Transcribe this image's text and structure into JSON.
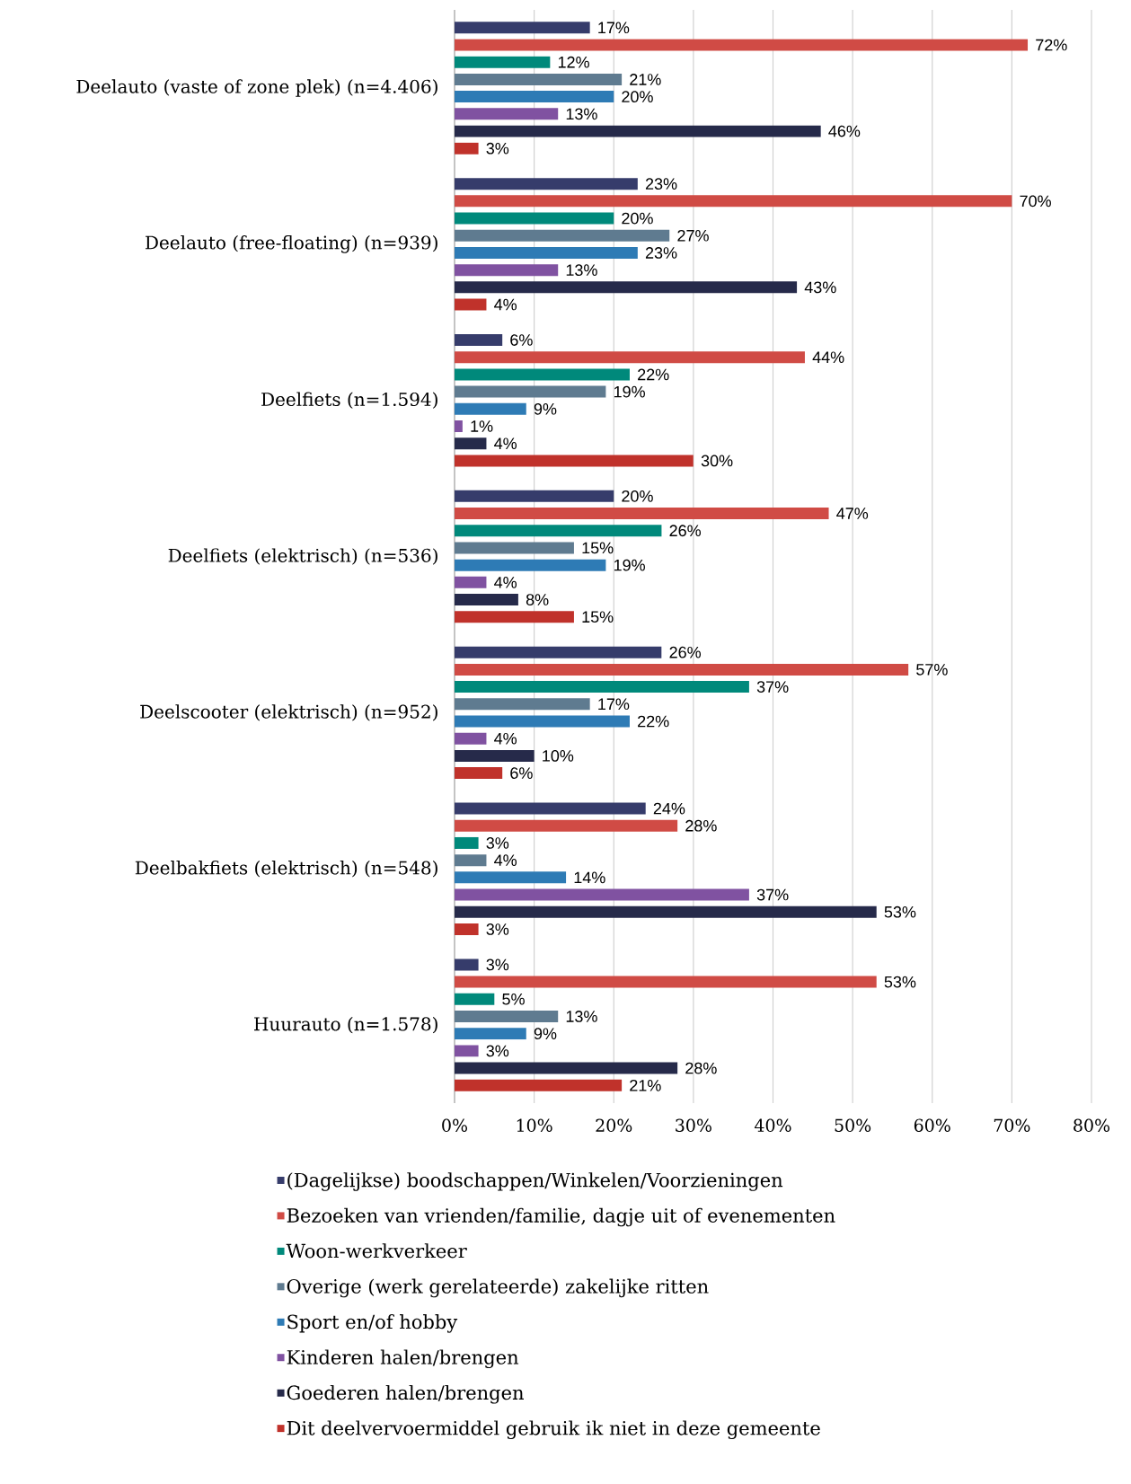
{
  "chart_data": {
    "type": "bar",
    "orientation": "horizontal",
    "categories": [
      "Deelauto (vaste of zone plek) (n=4.406)",
      "Deelauto (free-floating) (n=939)",
      "Deelfiets (n=1.594)",
      "Deelfiets (elektrisch) (n=536)",
      "Deelscooter (elektrisch) (n=952)",
      "Deelbakfiets (elektrisch) (n=548)",
      "Huurauto (n=1.578)"
    ],
    "xlim": [
      0,
      80
    ],
    "xticks": [
      {
        "value": 0,
        "label": "0%"
      },
      {
        "value": 10,
        "label": "10%"
      },
      {
        "value": 20,
        "label": "20%"
      },
      {
        "value": 30,
        "label": "30%"
      },
      {
        "value": 40,
        "label": "40%"
      },
      {
        "value": 50,
        "label": "50%"
      },
      {
        "value": 60,
        "label": "60%"
      },
      {
        "value": 70,
        "label": "70%"
      },
      {
        "value": 80,
        "label": "80%"
      }
    ],
    "grid": "x",
    "legend": "bottom",
    "series": [
      {
        "name": "(Dagelijkse) boodschappen/Winkelen/Voorzieningen",
        "color": "#363c6b",
        "values": [
          17,
          23,
          6,
          20,
          26,
          24,
          3
        ],
        "value_labels": [
          "17%",
          "23%",
          "6%",
          "20%",
          "26%",
          "24%",
          "3%"
        ]
      },
      {
        "name": "Bezoeken van vrienden/familie, dagje uit of evenementen",
        "color": "#d04b45",
        "values": [
          72,
          70,
          44,
          47,
          57,
          28,
          53
        ],
        "value_labels": [
          "72%",
          "70%",
          "44%",
          "47%",
          "57%",
          "28%",
          "53%"
        ]
      },
      {
        "name": "Woon-werkverkeer",
        "color": "#00897b",
        "values": [
          12,
          20,
          22,
          26,
          37,
          3,
          5
        ],
        "value_labels": [
          "12%",
          "20%",
          "22%",
          "26%",
          "37%",
          "3%",
          "5%"
        ]
      },
      {
        "name": "Overige (werk gerelateerde) zakelijke ritten",
        "color": "#5f7b90",
        "values": [
          21,
          27,
          19,
          15,
          17,
          4,
          13
        ],
        "value_labels": [
          "21%",
          "27%",
          "19%",
          "15%",
          "17%",
          "4%",
          "13%"
        ]
      },
      {
        "name": "Sport en/of hobby",
        "color": "#2e7bb5",
        "values": [
          20,
          23,
          9,
          19,
          22,
          14,
          9
        ],
        "value_labels": [
          "20%",
          "23%",
          "9%",
          "19%",
          "22%",
          "14%",
          "9%"
        ]
      },
      {
        "name": "Kinderen halen/brengen",
        "color": "#8052a1",
        "values": [
          13,
          13,
          1,
          4,
          4,
          37,
          3
        ],
        "value_labels": [
          "13%",
          "13%",
          "1%",
          "4%",
          "4%",
          "37%",
          "3%"
        ]
      },
      {
        "name": "Goederen halen/brengen",
        "color": "#262a4a",
        "values": [
          46,
          43,
          4,
          8,
          10,
          53,
          28
        ],
        "value_labels": [
          "46%",
          "43%",
          "4%",
          "8%",
          "10%",
          "53%",
          "28%"
        ]
      },
      {
        "name": "Dit deelvervoermiddel gebruik ik niet in deze gemeente",
        "color": "#c0322b",
        "values": [
          3,
          4,
          30,
          15,
          6,
          3,
          21
        ],
        "value_labels": [
          "3%",
          "4%",
          "30%",
          "15%",
          "6%",
          "3%",
          "21%"
        ]
      }
    ]
  }
}
